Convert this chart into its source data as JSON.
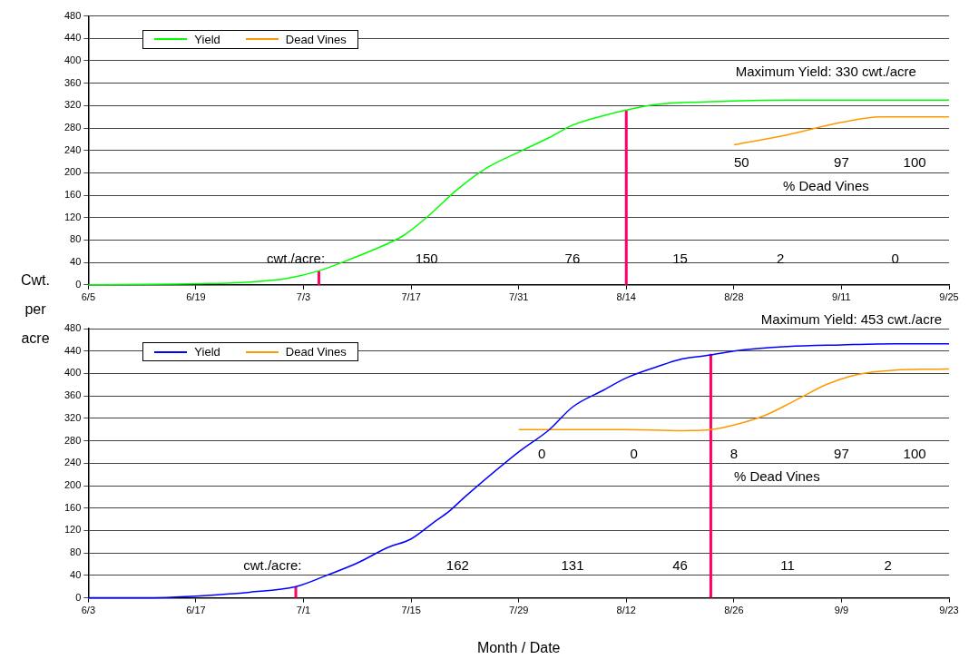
{
  "chart_data": [
    {
      "type": "line",
      "legend": "top left",
      "grid": "y",
      "marker": "none",
      "ylabel": "Cwt. per acre",
      "xlim": [
        "--06-05",
        "--09-25"
      ],
      "xticks": [
        {
          "value": "--06-05",
          "label": "6/5"
        },
        {
          "value": "--06-19",
          "label": "6/19"
        },
        {
          "value": "--07-03",
          "label": "7/3"
        },
        {
          "value": "--07-17",
          "label": "7/17"
        },
        {
          "value": "--07-31",
          "label": "7/31"
        },
        {
          "value": "--08-14",
          "label": "8/14"
        },
        {
          "value": "--08-28",
          "label": "8/28"
        },
        {
          "value": "--09-11",
          "label": "9/11"
        },
        {
          "value": "--09-25",
          "label": "9/25"
        }
      ],
      "ylim": [
        0,
        480
      ],
      "yticks": [
        0,
        40,
        80,
        120,
        160,
        200,
        240,
        280,
        320,
        360,
        400,
        440,
        480
      ],
      "series": [
        {
          "name": "Yield",
          "color": "#00ff00",
          "x": [
            "--06-05",
            "--06-19",
            "--06-26",
            "--07-01",
            "--07-05",
            "--07-08",
            "--07-12",
            "--07-16",
            "--07-19",
            "--07-23",
            "--07-27",
            "--07-31",
            "--08-04",
            "--08-07",
            "--08-11",
            "--08-14",
            "--08-18",
            "--08-25",
            "--09-04",
            "--09-25"
          ],
          "values": [
            0,
            2,
            5,
            12,
            25,
            40,
            62,
            88,
            120,
            170,
            210,
            237,
            263,
            285,
            302,
            312,
            322,
            327,
            330,
            330
          ]
        },
        {
          "name": "Dead Vines",
          "color": "#ff9900",
          "x": [
            "--08-28",
            "--09-04",
            "--09-11",
            "--09-16",
            "--09-25"
          ],
          "values": [
            250,
            268,
            290,
            300,
            300
          ]
        },
        {
          "color": "#ff0066",
          "x": [
            "--07-05",
            "--07-05"
          ],
          "values": [
            0,
            25
          ]
        },
        {
          "color": "#ff0066",
          "x": [
            "--08-14",
            "--08-14"
          ],
          "values": [
            0,
            312
          ]
        }
      ],
      "annotations": [
        "Maximum Yield: 330 cwt./acre",
        "cwt./acre:",
        "150",
        "76",
        "15",
        "2",
        "0",
        "50",
        "97",
        "100",
        "% Dead Vines"
      ]
    },
    {
      "type": "line",
      "legend": "top left",
      "grid": "y",
      "marker": "none",
      "xlabel": "Month / Date",
      "subtitle": "Maximum Yield: 453 cwt./acre",
      "xlim": [
        "--06-03",
        "--09-23"
      ],
      "xticks": [
        {
          "value": "--06-03",
          "label": "6/3"
        },
        {
          "value": "--06-17",
          "label": "6/17"
        },
        {
          "value": "--07-01",
          "label": "7/1"
        },
        {
          "value": "--07-15",
          "label": "7/15"
        },
        {
          "value": "--07-29",
          "label": "7/29"
        },
        {
          "value": "--08-12",
          "label": "8/12"
        },
        {
          "value": "--08-26",
          "label": "8/26"
        },
        {
          "value": "--09-09",
          "label": "9/9"
        },
        {
          "value": "--09-23",
          "label": "9/23"
        }
      ],
      "ylim": [
        0,
        480
      ],
      "yticks": [
        0,
        40,
        80,
        120,
        160,
        200,
        240,
        280,
        320,
        360,
        400,
        440,
        480
      ],
      "series": [
        {
          "name": "Yield",
          "color": "#0000ff",
          "x": [
            "--06-03",
            "--06-10",
            "--06-17",
            "--06-24",
            "--06-30",
            "--07-04",
            "--07-08",
            "--07-12",
            "--07-15",
            "--07-18",
            "--07-20",
            "--07-22",
            "--07-29",
            "--08-02",
            "--08-05",
            "--08-09",
            "--08-12",
            "--08-16",
            "--08-19",
            "--08-23",
            "--08-26",
            "--09-02",
            "--09-09",
            "--09-16",
            "--09-23"
          ],
          "values": [
            0,
            0,
            3,
            10,
            20,
            40,
            62,
            90,
            105,
            135,
            155,
            180,
            260,
            300,
            340,
            370,
            392,
            412,
            425,
            433,
            440,
            448,
            451,
            453,
            453
          ]
        },
        {
          "name": "Dead Vines",
          "color": "#ff9900",
          "x": [
            "--07-29",
            "--08-12",
            "--08-19",
            "--08-23",
            "--08-26",
            "--08-30",
            "--09-03",
            "--09-07",
            "--09-11",
            "--09-16",
            "--09-23"
          ],
          "values": [
            300,
            300,
            298,
            300,
            308,
            325,
            352,
            380,
            398,
            406,
            408
          ]
        },
        {
          "color": "#ff0066",
          "x": [
            "--06-30",
            "--06-30"
          ],
          "values": [
            0,
            20
          ]
        },
        {
          "color": "#ff0066",
          "x": [
            "--08-23",
            "--08-23"
          ],
          "values": [
            0,
            435
          ]
        }
      ],
      "annotations": [
        "cwt./acre:",
        "162",
        "131",
        "46",
        "11",
        "2",
        "0",
        "0",
        "8",
        "97",
        "100",
        "% Dead Vines"
      ]
    }
  ]
}
